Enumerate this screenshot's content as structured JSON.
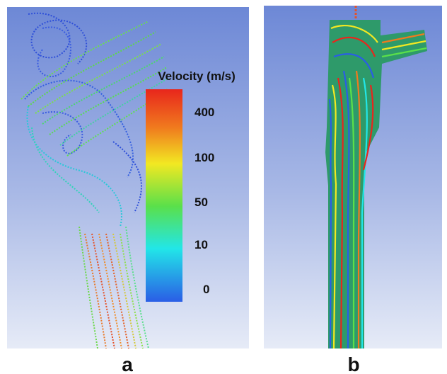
{
  "panel_a": {
    "label": "a"
  },
  "panel_b": {
    "label": "b"
  },
  "colorbar": {
    "title": "Velocity (m/s)",
    "labels": [
      400,
      100,
      50,
      10,
      0
    ]
  }
}
